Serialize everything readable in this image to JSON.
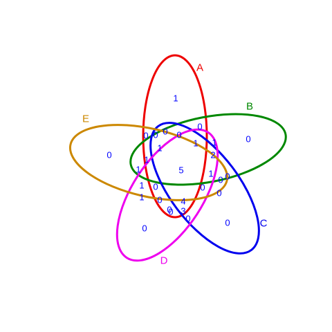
{
  "sets": [
    {
      "id": "A",
      "label": "A",
      "color": "#ee0000"
    },
    {
      "id": "B",
      "label": "B",
      "color": "#008800"
    },
    {
      "id": "C",
      "label": "C",
      "color": "#0000ee"
    },
    {
      "id": "D",
      "label": "D",
      "color": "#ee00ee"
    },
    {
      "id": "E",
      "label": "E",
      "color": "#cc8800"
    }
  ],
  "count_color": "#0000ff",
  "regions": [
    {
      "sets": "A",
      "value": "1"
    },
    {
      "sets": "B",
      "value": "0"
    },
    {
      "sets": "C",
      "value": "0"
    },
    {
      "sets": "D",
      "value": "0"
    },
    {
      "sets": "E",
      "value": "0"
    },
    {
      "sets": "AB",
      "value": "0"
    },
    {
      "sets": "AC",
      "value": "0"
    },
    {
      "sets": "AD",
      "value": "0"
    },
    {
      "sets": "AE",
      "value": "0"
    },
    {
      "sets": "BC",
      "value": "0"
    },
    {
      "sets": "BD",
      "value": "0"
    },
    {
      "sets": "BE",
      "value": "1"
    },
    {
      "sets": "CD",
      "value": "0"
    },
    {
      "sets": "CE",
      "value": "1"
    },
    {
      "sets": "DE",
      "value": "1"
    },
    {
      "sets": "ABC",
      "value": "0"
    },
    {
      "sets": "ABD",
      "value": "1"
    },
    {
      "sets": "ABE",
      "value": "1"
    },
    {
      "sets": "ACD",
      "value": "0"
    },
    {
      "sets": "ACE",
      "value": "1"
    },
    {
      "sets": "ADE",
      "value": "0"
    },
    {
      "sets": "BCD",
      "value": "0"
    },
    {
      "sets": "BCE",
      "value": "1"
    },
    {
      "sets": "BDE",
      "value": "0"
    },
    {
      "sets": "CDE",
      "value": "0"
    },
    {
      "sets": "ABCD",
      "value": "2"
    },
    {
      "sets": "ABCE",
      "value": "1"
    },
    {
      "sets": "ABDE",
      "value": "4"
    },
    {
      "sets": "ACDE",
      "value": "3"
    },
    {
      "sets": "BCDE",
      "value": "0"
    },
    {
      "sets": "ABCDE",
      "value": "5"
    }
  ]
}
